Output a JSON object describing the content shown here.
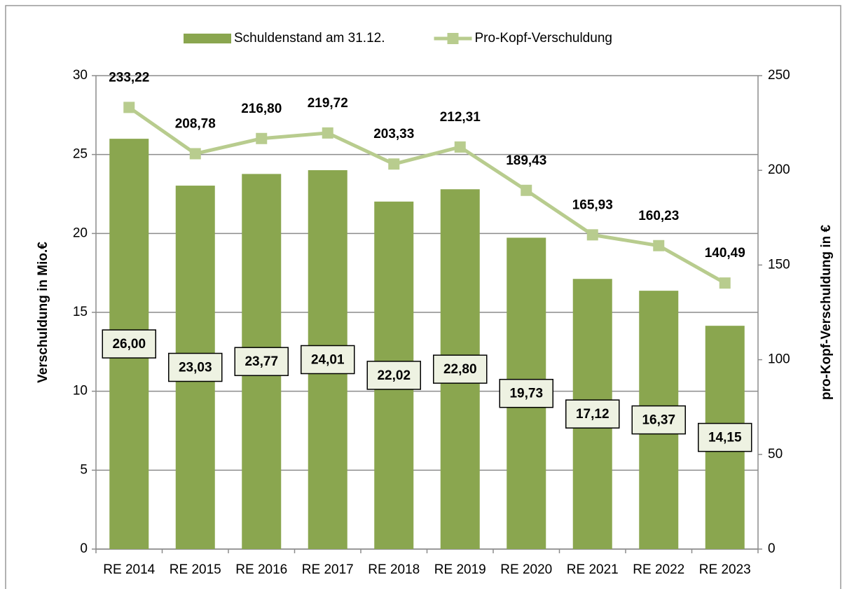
{
  "chart_data": {
    "type": "bar",
    "categories": [
      "RE 2014",
      "RE 2015",
      "RE 2016",
      "RE 2017",
      "RE 2018",
      "RE 2019",
      "RE 2020",
      "RE 2021",
      "RE 2022",
      "RE 2023"
    ],
    "series": [
      {
        "name": "Schuldenstand am 31.12.",
        "type": "bar",
        "color": "#8aa64f",
        "values": [
          26.0,
          23.03,
          23.77,
          24.01,
          22.02,
          22.8,
          19.73,
          17.12,
          16.37,
          14.15
        ],
        "value_labels": [
          "26,00",
          "23,03",
          "23,77",
          "24,01",
          "22,02",
          "22,80",
          "19,73",
          "17,12",
          "16,37",
          "14,15"
        ]
      },
      {
        "name": "Pro-Kopf-Verschuldung",
        "type": "line",
        "axis": "y2",
        "color": "#b8cc8e",
        "values": [
          233.22,
          208.78,
          216.8,
          219.72,
          203.33,
          212.31,
          189.43,
          165.93,
          160.23,
          140.49
        ],
        "value_labels": [
          "233,22",
          "208,78",
          "216,80",
          "219,72",
          "203,33",
          "212,31",
          "189,43",
          "165,93",
          "160,23",
          "140,49"
        ]
      }
    ],
    "y_label": "Verschuldung in Mio.€",
    "y2_label": "pro-Kopf-Verschuldung in €",
    "ylim": [
      0,
      30
    ],
    "yticks": [
      0,
      5,
      10,
      15,
      20,
      25,
      30
    ],
    "y2lim": [
      0,
      250
    ],
    "y2ticks": [
      0,
      50,
      100,
      150,
      200,
      250
    ],
    "grid": true,
    "legend": "top"
  }
}
